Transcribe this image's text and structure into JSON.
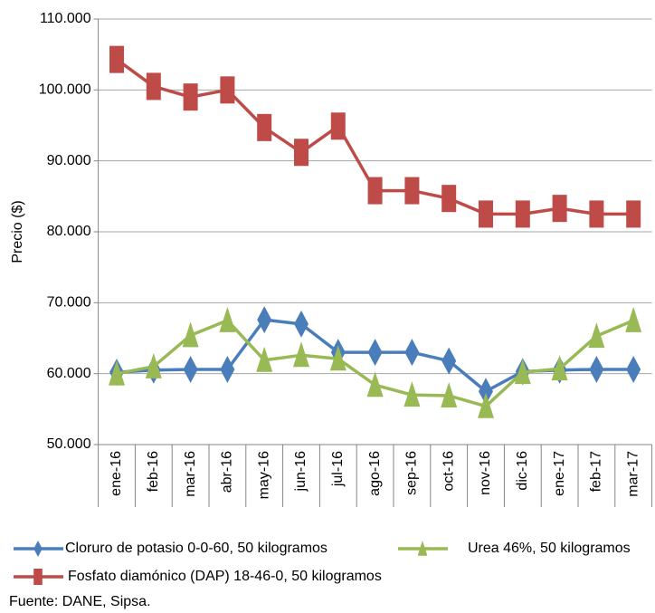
{
  "chart_data": {
    "type": "line",
    "y_label": "Precio ($)",
    "categories": [
      "ene-16",
      "feb-16",
      "mar-16",
      "abr-16",
      "may-16",
      "jun-16",
      "jul-16",
      "ago-16",
      "sep-16",
      "oct-16",
      "nov-16",
      "dic-16",
      "ene-17",
      "feb-17",
      "mar-17"
    ],
    "series": [
      {
        "name": "Cloruro de potasio 0-0-60, 50 kilogramos",
        "color": "#4a7ebb",
        "marker": "diamond",
        "values": [
          60200,
          60500,
          60600,
          60600,
          67600,
          67000,
          63000,
          63000,
          63000,
          61800,
          57500,
          60300,
          60500,
          60600,
          60600
        ]
      },
      {
        "name": "Urea 46%, 50 kilogramos",
        "color": "#98b954",
        "marker": "triangle",
        "values": [
          60000,
          61000,
          65400,
          67500,
          61900,
          62600,
          62100,
          58400,
          57000,
          56900,
          55400,
          60200,
          60700,
          65300,
          67500
        ]
      },
      {
        "name": "Fosfato diamónico (DAP) 18-46-0, 50 kilogramos",
        "color": "#be4b48",
        "marker": "square",
        "values": [
          104300,
          100500,
          99000,
          100000,
          94700,
          91200,
          94900,
          85800,
          85800,
          84700,
          82500,
          82500,
          83300,
          82500,
          82500
        ]
      }
    ],
    "ylim": [
      50000,
      110000
    ],
    "yticks": [
      {
        "value": 50000,
        "label": "50.000"
      },
      {
        "value": 60000,
        "label": "60.000"
      },
      {
        "value": 70000,
        "label": "70.000"
      },
      {
        "value": 80000,
        "label": "80.000"
      },
      {
        "value": 90000,
        "label": "90.000"
      },
      {
        "value": 100000,
        "label": "100.000"
      },
      {
        "value": 110000,
        "label": "110.000"
      }
    ],
    "grid": true,
    "source": "Fuente: DANE, Sipsa."
  }
}
